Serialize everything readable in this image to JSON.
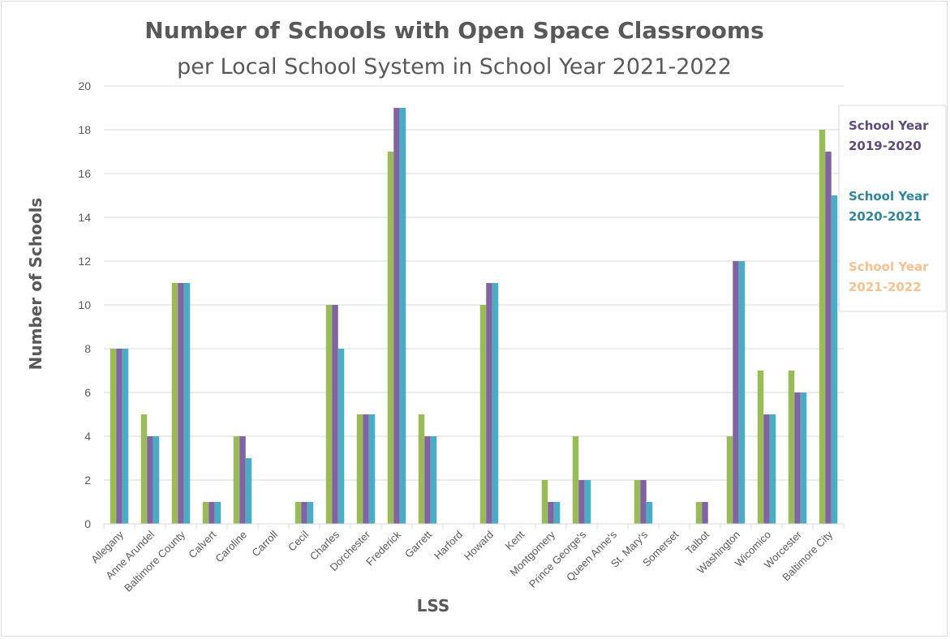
{
  "chart_data": {
    "type": "bar",
    "title": "Number of Schools with Open Space Classrooms",
    "subtitle": "per Local School System in School Year 2021-2022",
    "xlabel": "LSS",
    "ylabel": "Number of Schools",
    "ylim": [
      0,
      20
    ],
    "yticks": [
      "0",
      "2",
      "4",
      "6",
      "8",
      "10",
      "12",
      "14",
      "16",
      "18",
      "20"
    ],
    "grid": true,
    "legend_position": "right",
    "categories": [
      "Allegany",
      "Anne Arundel",
      "Baltimore County",
      "Calvert",
      "Caroline",
      "Carroll",
      "Cecil",
      "Charles",
      "Dorchester",
      "Frederick",
      "Garrett",
      "Harford",
      "Howard",
      "Kent",
      "Montgomery",
      "Prince George's",
      "Queen Anne's",
      "St. Mary's",
      "Somerset",
      "Talbot",
      "Washington",
      "Wicomico",
      "Worcester",
      "Baltimore City"
    ],
    "series": [
      {
        "name": "School Year 2021-2022",
        "color": "#9bbb59",
        "values": [
          8,
          5,
          11,
          1,
          4,
          0,
          1,
          10,
          5,
          17,
          5,
          0,
          10,
          0,
          2,
          4,
          0,
          2,
          0,
          1,
          4,
          7,
          7,
          18
        ]
      },
      {
        "name": "School Year 2019-2020",
        "color": "#8064a2",
        "values": [
          8,
          4,
          11,
          1,
          4,
          0,
          1,
          10,
          5,
          19,
          4,
          0,
          11,
          0,
          1,
          2,
          0,
          2,
          0,
          1,
          12,
          5,
          6,
          17
        ]
      },
      {
        "name": "School Year 2020-2021",
        "color": "#4bacc6",
        "values": [
          8,
          4,
          11,
          1,
          3,
          0,
          1,
          8,
          5,
          19,
          4,
          0,
          11,
          0,
          1,
          2,
          0,
          1,
          0,
          0,
          12,
          5,
          6,
          15
        ]
      }
    ],
    "legend": [
      {
        "line1": "School Year",
        "line2": "2019-2020",
        "color": "#604a7b"
      },
      {
        "line1": "School Year",
        "line2": "2020-2021",
        "color": "#31859c"
      },
      {
        "line1": "School Year",
        "line2": "2021-2022",
        "color": "#fac090"
      }
    ]
  }
}
